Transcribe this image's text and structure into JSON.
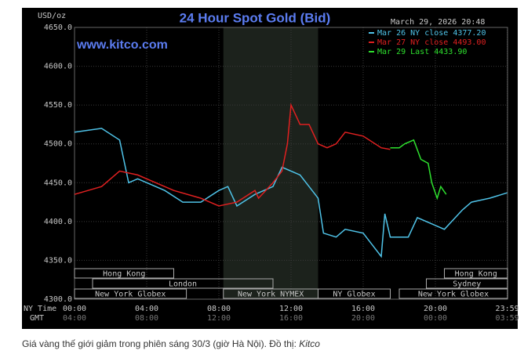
{
  "chart_data": {
    "type": "line",
    "title": "24 Hour Spot Gold (Bid)",
    "unit_label": "USD/oz",
    "timestamp": "March 29, 2026 20:48",
    "website": "www.kitco.com",
    "x_row_labels": [
      "NY Time",
      "GMT"
    ],
    "xlim": [
      0,
      24
    ],
    "xticks": [
      {
        "value": 0,
        "label": "00:00"
      },
      {
        "value": 4,
        "label": "04:00"
      },
      {
        "value": 8,
        "label": "08:00"
      },
      {
        "value": 12,
        "label": "12:00"
      },
      {
        "value": 16,
        "label": "16:00"
      },
      {
        "value": 20,
        "label": "20:00"
      },
      {
        "value": 23.983,
        "label": "23:59"
      }
    ],
    "gmt_tick_labels": [
      "04:00",
      "08:00",
      "12:00",
      "16:00",
      "20:00",
      "00:00",
      "03:59"
    ],
    "ylim": [
      4300,
      4650
    ],
    "yticks": [
      {
        "value": 4300,
        "label": "4300.0"
      },
      {
        "value": 4350,
        "label": "4350.0"
      },
      {
        "value": 4400,
        "label": "4400.0"
      },
      {
        "value": 4450,
        "label": "4450.0"
      },
      {
        "value": 4500,
        "label": "4500.0"
      },
      {
        "value": 4550,
        "label": "4550.0"
      },
      {
        "value": 4600,
        "label": "4600.0"
      },
      {
        "value": 4650,
        "label": "4650.0"
      }
    ],
    "grid": true,
    "highlight_x": [
      8.25,
      13.5
    ],
    "sessions": [
      [
        {
          "label": "Hong Kong",
          "start": 0,
          "end": 5.5
        },
        {
          "label": "Hong Kong",
          "start": 20.5,
          "end": 24
        }
      ],
      [
        {
          "label": "London",
          "start": 1,
          "end": 11
        },
        {
          "label": "Sydney",
          "start": 19.5,
          "end": 24
        }
      ],
      [
        {
          "label": "New York Globex",
          "start": 0,
          "end": 6.2
        },
        {
          "label": "New York NYMEX",
          "start": 8.25,
          "end": 13.5
        },
        {
          "label": "NY Globex",
          "start": 13.5,
          "end": 17.5
        },
        {
          "label": "New York Globex",
          "start": 18,
          "end": 24
        }
      ]
    ],
    "series": [
      {
        "name": "Mar 26 NY close 4377.20",
        "color": "#4fc3e8",
        "x": [
          0,
          1.5,
          2.5,
          3,
          3.5,
          4.5,
          5,
          6,
          7,
          8,
          8.5,
          9,
          10,
          11,
          11.5,
          12.5,
          13,
          13.5,
          13.8,
          14.5,
          15,
          16,
          16.5,
          17,
          17.2,
          17.5,
          18.5,
          19,
          20,
          20.5,
          21.5,
          22,
          23,
          23.98
        ],
        "values": [
          4515,
          4520,
          4505,
          4450,
          4455,
          4445,
          4440,
          4425,
          4425,
          4440,
          4445,
          4420,
          4435,
          4445,
          4470,
          4460,
          4445,
          4430,
          4385,
          4380,
          4390,
          4385,
          4370,
          4355,
          4410,
          4380,
          4380,
          4405,
          4395,
          4390,
          4415,
          4425,
          4430,
          4437
        ]
      },
      {
        "name": "Mar 27 NY close 4493.00",
        "color": "#e02020",
        "x": [
          0,
          1.5,
          2.5,
          3.5,
          4.5,
          5.5,
          7,
          8,
          9,
          10,
          10.2,
          11,
          11.5,
          11.8,
          12,
          12.5,
          13,
          13.5,
          14,
          14.5,
          15,
          16,
          17,
          17.5
        ],
        "values": [
          4435,
          4445,
          4465,
          4460,
          4450,
          4440,
          4430,
          4420,
          4425,
          4440,
          4430,
          4450,
          4465,
          4500,
          4550,
          4525,
          4525,
          4500,
          4495,
          4500,
          4515,
          4510,
          4495,
          4493
        ]
      },
      {
        "name": "Mar 29 Last 4433.90",
        "color": "#2ee02e",
        "x": [
          17.5,
          18,
          18.3,
          18.8,
          19.2,
          19.6,
          19.8,
          20.1,
          20.3,
          20.6
        ],
        "values": [
          4495,
          4495,
          4500,
          4505,
          4480,
          4475,
          4450,
          4430,
          4445,
          4435
        ]
      }
    ]
  },
  "caption": {
    "text": "Giá vàng thế giới giảm trong phiên sáng 30/3 (giờ Hà Nội). Đồ thị: ",
    "source": "Kitco"
  }
}
